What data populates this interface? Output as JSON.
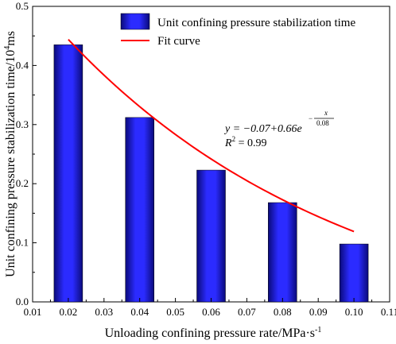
{
  "chart_data": {
    "type": "bar",
    "title": "",
    "xlabel": "Unloading confining pressure rate/MPa·s",
    "xlabel_sup": "-1",
    "ylabel": "Unit confining pressure stabilization time/10",
    "ylabel_sup": "4",
    "ylabel_unit": "ms",
    "xlim": [
      0.01,
      0.11
    ],
    "ylim": [
      0,
      0.5
    ],
    "x_ticks": [
      "0.01",
      "0.02",
      "0.03",
      "0.04",
      "0.05",
      "0.06",
      "0.07",
      "0.08",
      "0.09",
      "0.10",
      "0.11"
    ],
    "y_ticks": [
      "0.0",
      "0.1",
      "0.2",
      "0.3",
      "0.4",
      "0.5"
    ],
    "grid": false,
    "legend_position": "top-right",
    "series": [
      {
        "name": "Unit confining pressure stabilization time",
        "type": "bar",
        "color": "#1a1acc",
        "x": [
          0.02,
          0.04,
          0.06,
          0.08,
          0.1
        ],
        "values": [
          0.435,
          0.312,
          0.223,
          0.168,
          0.098
        ]
      },
      {
        "name": "Fit curve",
        "type": "line",
        "color": "#ff0000",
        "x_range": [
          0.02,
          0.1
        ],
        "model": {
          "a": -0.07,
          "b": 0.66,
          "c": 0.08
        }
      }
    ],
    "annotation": {
      "eq_prefix": "y = −0.07+0.66e",
      "eq_exp_num": "x",
      "eq_exp_den": "0.08",
      "r2_label": "R",
      "r2_sup": "2",
      "r2_value": " = 0.99"
    }
  }
}
